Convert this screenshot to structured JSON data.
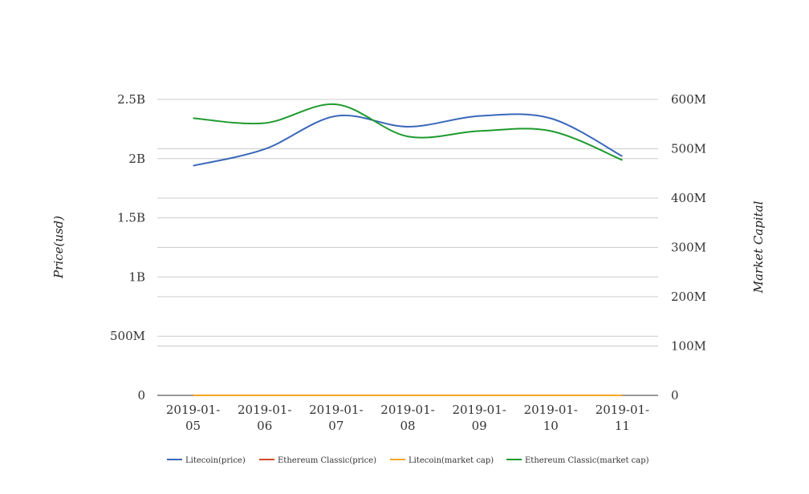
{
  "chart_data": {
    "type": "line",
    "title": "",
    "categories": [
      "2019-01-05",
      "2019-01-06",
      "2019-01-07",
      "2019-01-08",
      "2019-01-09",
      "2019-01-10",
      "2019-01-11"
    ],
    "category_lines": [
      [
        "2019-01-",
        "05"
      ],
      [
        "2019-01-",
        "06"
      ],
      [
        "2019-01-",
        "07"
      ],
      [
        "2019-01-",
        "08"
      ],
      [
        "2019-01-",
        "09"
      ],
      [
        "2019-01-",
        "10"
      ],
      [
        "2019-01-",
        "11"
      ]
    ],
    "y_left": {
      "label": "Price(usd)",
      "range": [
        0,
        2500000000
      ],
      "ticks": [
        0,
        500000000,
        1000000000,
        1500000000,
        2000000000,
        2500000000
      ],
      "tick_labels": [
        "0",
        "500M",
        "1B",
        "1.5B",
        "2B",
        "2.5B"
      ]
    },
    "y_right": {
      "label": "Market Capital",
      "range": [
        0,
        600000000
      ],
      "ticks": [
        0,
        100000000,
        200000000,
        300000000,
        400000000,
        500000000,
        600000000
      ],
      "tick_labels": [
        "0",
        "100M",
        "200M",
        "300M",
        "400M",
        "500M",
        "600M"
      ]
    },
    "series": [
      {
        "name": "Litecoin(price)",
        "axis": "left",
        "color": "#3a67b9",
        "values": [
          1940000000,
          2080000000,
          2360000000,
          2270000000,
          2360000000,
          2340000000,
          2020000000
        ]
      },
      {
        "name": "Ethereum Classic(price)",
        "axis": "left",
        "color": "#d14a2b",
        "values": [
          5,
          6,
          7,
          6,
          6,
          6,
          5
        ]
      },
      {
        "name": "Litecoin(market cap)",
        "axis": "left",
        "color": "#f5a623",
        "values": [
          35,
          38,
          42,
          39,
          39,
          37,
          33
        ]
      },
      {
        "name": "Ethereum Classic(market cap)",
        "axis": "right",
        "color": "#1e9a2e",
        "values": [
          562000000,
          552000000,
          590000000,
          525000000,
          536000000,
          536000000,
          477000000
        ]
      }
    ],
    "grid": true,
    "legend_position": "bottom"
  }
}
